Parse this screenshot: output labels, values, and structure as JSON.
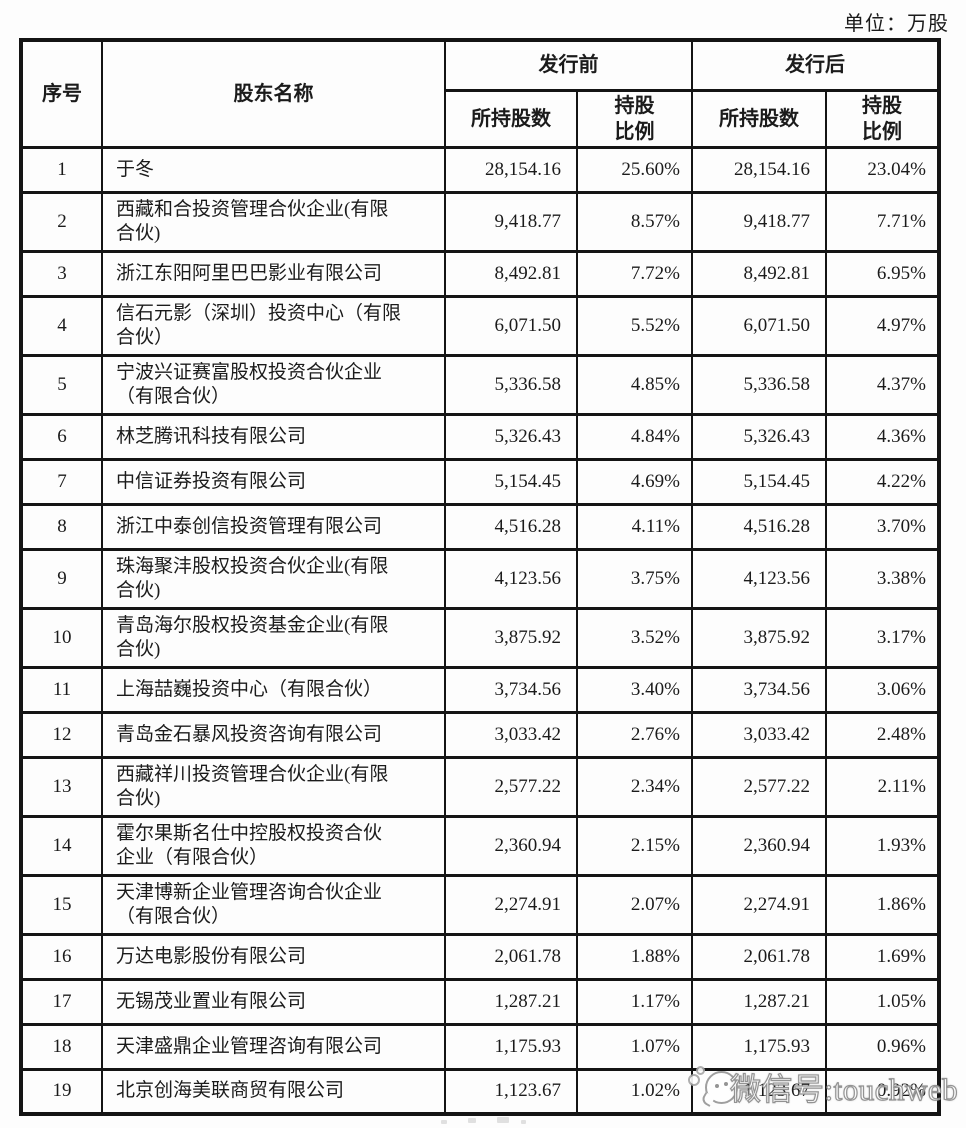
{
  "page": {
    "unit_label": "单位：万股"
  },
  "table": {
    "headers": {
      "col_index": "序号",
      "col_name": "股东名称",
      "group_before": "发行前",
      "group_after": "发行后",
      "col_shares": "所持股数",
      "col_ratio": "持股\n比例"
    },
    "rows": [
      {
        "no": "1",
        "name": "于冬",
        "shares_before": "28,154.16",
        "ratio_before": "25.60%",
        "shares_after": "28,154.16",
        "ratio_after": "23.04%"
      },
      {
        "no": "2",
        "name": "西藏和合投资管理合伙企业(有限\n合伙)",
        "shares_before": "9,418.77",
        "ratio_before": "8.57%",
        "shares_after": "9,418.77",
        "ratio_after": "7.71%"
      },
      {
        "no": "3",
        "name": "浙江东阳阿里巴巴影业有限公司",
        "shares_before": "8,492.81",
        "ratio_before": "7.72%",
        "shares_after": "8,492.81",
        "ratio_after": "6.95%"
      },
      {
        "no": "4",
        "name": "信石元影（深圳）投资中心（有限\n合伙）",
        "shares_before": "6,071.50",
        "ratio_before": "5.52%",
        "shares_after": "6,071.50",
        "ratio_after": "4.97%"
      },
      {
        "no": "5",
        "name": "宁波兴证赛富股权投资合伙企业\n（有限合伙）",
        "shares_before": "5,336.58",
        "ratio_before": "4.85%",
        "shares_after": "5,336.58",
        "ratio_after": "4.37%"
      },
      {
        "no": "6",
        "name": "林芝腾讯科技有限公司",
        "shares_before": "5,326.43",
        "ratio_before": "4.84%",
        "shares_after": "5,326.43",
        "ratio_after": "4.36%"
      },
      {
        "no": "7",
        "name": "中信证券投资有限公司",
        "shares_before": "5,154.45",
        "ratio_before": "4.69%",
        "shares_after": "5,154.45",
        "ratio_after": "4.22%"
      },
      {
        "no": "8",
        "name": "浙江中泰创信投资管理有限公司",
        "shares_before": "4,516.28",
        "ratio_before": "4.11%",
        "shares_after": "4,516.28",
        "ratio_after": "3.70%"
      },
      {
        "no": "9",
        "name": "珠海聚沣股权投资合伙企业(有限\n合伙)",
        "shares_before": "4,123.56",
        "ratio_before": "3.75%",
        "shares_after": "4,123.56",
        "ratio_after": "3.38%"
      },
      {
        "no": "10",
        "name": "青岛海尔股权投资基金企业(有限\n合伙)",
        "shares_before": "3,875.92",
        "ratio_before": "3.52%",
        "shares_after": "3,875.92",
        "ratio_after": "3.17%"
      },
      {
        "no": "11",
        "name": "上海喆巍投资中心（有限合伙）",
        "shares_before": "3,734.56",
        "ratio_before": "3.40%",
        "shares_after": "3,734.56",
        "ratio_after": "3.06%"
      },
      {
        "no": "12",
        "name": "青岛金石暴风投资咨询有限公司",
        "shares_before": "3,033.42",
        "ratio_before": "2.76%",
        "shares_after": "3,033.42",
        "ratio_after": "2.48%"
      },
      {
        "no": "13",
        "name": "西藏祥川投资管理合伙企业(有限\n合伙)",
        "shares_before": "2,577.22",
        "ratio_before": "2.34%",
        "shares_after": "2,577.22",
        "ratio_after": "2.11%"
      },
      {
        "no": "14",
        "name": "霍尔果斯名仕中控股权投资合伙\n企业（有限合伙）",
        "shares_before": "2,360.94",
        "ratio_before": "2.15%",
        "shares_after": "2,360.94",
        "ratio_after": "1.93%"
      },
      {
        "no": "15",
        "name": "天津博新企业管理咨询合伙企业\n（有限合伙）",
        "shares_before": "2,274.91",
        "ratio_before": "2.07%",
        "shares_after": "2,274.91",
        "ratio_after": "1.86%"
      },
      {
        "no": "16",
        "name": "万达电影股份有限公司",
        "shares_before": "2,061.78",
        "ratio_before": "1.88%",
        "shares_after": "2,061.78",
        "ratio_after": "1.69%"
      },
      {
        "no": "17",
        "name": "无锡茂业置业有限公司",
        "shares_before": "1,287.21",
        "ratio_before": "1.17%",
        "shares_after": "1,287.21",
        "ratio_after": "1.05%"
      },
      {
        "no": "18",
        "name": "天津盛鼎企业管理咨询有限公司",
        "shares_before": "1,175.93",
        "ratio_before": "1.07%",
        "shares_after": "1,175.93",
        "ratio_after": "0.96%"
      },
      {
        "no": "19",
        "name": "北京创海美联商贸有限公司",
        "shares_before": "1,123.67",
        "ratio_before": "1.02%",
        "shares_after": "1,123.67",
        "ratio_after": "0.92%"
      }
    ]
  },
  "watermark": {
    "text": "微信号:touchweb",
    "logo": "chat-bubble-icon"
  },
  "colors": {
    "border": "#141414",
    "text": "#1b1b1b",
    "watermark_stroke": "#8f8f8f",
    "background": "#fdfdfd"
  }
}
